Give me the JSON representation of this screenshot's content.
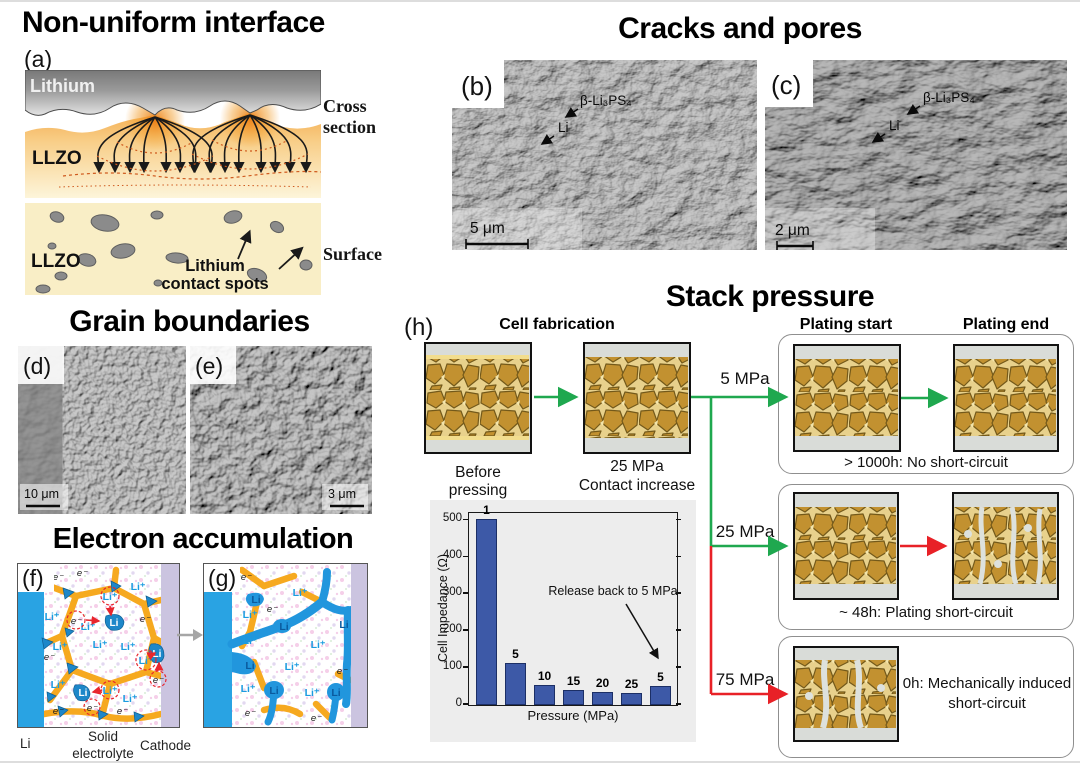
{
  "nonuniform": {
    "title": "Non-uniform interface",
    "panel_label": "(a)",
    "lithium": "Lithium",
    "llzo": "LLZO",
    "cross_section_line1": "Cross",
    "cross_section_line2": "section",
    "llzo2": "LLZO",
    "contact_line1": "Lithium",
    "contact_line2": "contact spots",
    "surface": "Surface"
  },
  "cracks": {
    "title": "Cracks and pores",
    "panel_b": {
      "label": "(b)",
      "phase": "β-Li₃PS₄",
      "li": "Li",
      "scale": "5 μm"
    },
    "panel_c": {
      "label": "(c)",
      "phase": "β-Li₃PS₄",
      "li": "Li",
      "scale": "2 μm"
    }
  },
  "grain": {
    "title": "Grain boundaries",
    "panel_d": {
      "label": "(d)",
      "scale": "10 μm"
    },
    "panel_e": {
      "label": "(e)",
      "scale": "3 μm"
    }
  },
  "electron": {
    "title": "Electron accumulation",
    "panel_f": "(f)",
    "panel_g": "(g)",
    "li_ion": "Li⁺",
    "electron": "e⁻",
    "li_metal": "Li",
    "bottom_li": "Li",
    "bottom_se1": "Solid",
    "bottom_se2": "electrolyte",
    "bottom_cathode": "Cathode"
  },
  "stack": {
    "title": "Stack pressure",
    "panel_label": "(h)",
    "header_fabrication": "Cell fabrication",
    "header_start": "Plating start",
    "header_end": "Plating end",
    "caption_before": "Before pressing",
    "caption_25_1": "25 MPa",
    "caption_25_2": "Contact increase",
    "branch1_pressure": "5 MPa",
    "branch1_outcome": "> 1000h: No short-circuit",
    "branch2_pressure": "25 MPa",
    "branch2_outcome": "~ 48h: Plating short-circuit",
    "branch3_pressure": "75 MPa",
    "branch3_outcome_1": "0h: Mechanically induced",
    "branch3_outcome_2": "short-circuit"
  },
  "chart_data": {
    "type": "bar",
    "categories": [
      "1",
      "5",
      "10",
      "15",
      "20",
      "25",
      "5"
    ],
    "values": [
      505,
      113,
      55,
      41,
      35,
      32,
      52
    ],
    "bar_labels": [
      "1",
      "5",
      "10",
      "15",
      "20",
      "25",
      "5"
    ],
    "xlabel": "Pressure (MPa)",
    "ylabel": "Cell Impedance (Ω)",
    "ylim": [
      0,
      520
    ],
    "yticks": [
      0,
      100,
      200,
      300,
      400,
      500
    ],
    "annotation": "Release back to 5 MPa",
    "bar_color": "#3d59a7",
    "grid": false,
    "legend_position": "none"
  },
  "colors": {
    "green_arrow": "#1fa84f",
    "red_arrow": "#e82127",
    "gold_particles": "#c29130",
    "blue_li": "#2196dd",
    "yellow_boundary": "#f6a91f",
    "cathode_strip": "#cbc4e0",
    "llzo_surface": "#f9eec6"
  }
}
